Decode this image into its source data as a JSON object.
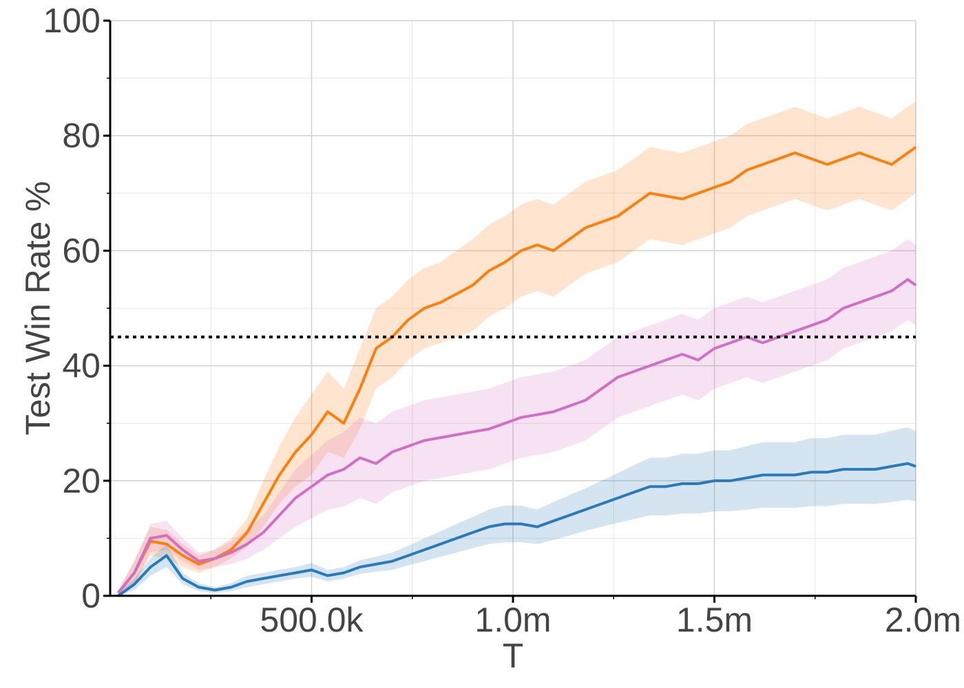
{
  "chart_data": {
    "type": "line",
    "title": "",
    "xlabel": "T",
    "ylabel": "Test Win Rate %",
    "xlim": [
      0,
      2000000
    ],
    "ylim": [
      0,
      100
    ],
    "x_ticks": [
      {
        "value": 500000,
        "label": "500.0k"
      },
      {
        "value": 1000000,
        "label": "1.0m"
      },
      {
        "value": 1500000,
        "label": "1.5m"
      },
      {
        "value": 2000000,
        "label": "2.0m"
      }
    ],
    "y_ticks": [
      {
        "value": 0,
        "label": "0"
      },
      {
        "value": 20,
        "label": "20"
      },
      {
        "value": 40,
        "label": "40"
      },
      {
        "value": 60,
        "label": "60"
      },
      {
        "value": 80,
        "label": "80"
      },
      {
        "value": 100,
        "label": "100"
      }
    ],
    "grid": true,
    "reference_line": {
      "y": 45,
      "style": "dotted",
      "color": "#000000"
    },
    "series": [
      {
        "color": "#ff7f0e",
        "x": [
          20000,
          60000,
          100000,
          140000,
          180000,
          220000,
          260000,
          300000,
          340000,
          380000,
          420000,
          460000,
          500000,
          540000,
          580000,
          620000,
          660000,
          700000,
          740000,
          780000,
          820000,
          860000,
          900000,
          940000,
          980000,
          1020000,
          1060000,
          1100000,
          1140000,
          1180000,
          1220000,
          1260000,
          1300000,
          1340000,
          1380000,
          1420000,
          1460000,
          1500000,
          1540000,
          1580000,
          1620000,
          1660000,
          1700000,
          1740000,
          1780000,
          1820000,
          1860000,
          1900000,
          1940000,
          1980000,
          2000000
        ],
        "y": [
          0.5,
          4,
          9.5,
          9,
          7,
          5.5,
          6.5,
          8,
          11,
          16,
          21,
          25,
          28,
          32,
          30,
          36,
          43,
          45,
          48,
          50,
          51,
          52.5,
          54,
          56.5,
          58,
          60,
          61,
          60,
          62,
          64,
          65,
          66,
          68,
          70,
          69.5,
          69,
          70,
          71,
          72,
          74,
          75,
          76,
          77,
          76,
          75,
          76,
          77,
          76,
          75,
          77,
          78
        ],
        "lower": [
          0,
          2,
          7,
          6.5,
          5,
          4,
          5,
          6.5,
          8.5,
          12,
          16,
          19,
          21,
          25,
          24,
          29,
          36,
          38,
          41,
          43,
          44,
          45,
          46,
          48.5,
          50,
          52,
          53,
          52,
          54,
          56,
          57,
          58,
          60,
          62,
          61.5,
          61,
          62,
          63,
          64,
          66,
          67,
          68,
          69,
          68,
          67,
          68,
          69,
          68,
          67,
          69,
          70
        ],
        "upper": [
          1,
          6,
          12,
          11.5,
          9,
          7,
          8,
          10,
          13.5,
          20,
          26,
          31,
          35,
          39,
          36,
          43,
          50,
          52,
          55,
          57,
          58,
          60,
          62,
          64.5,
          66,
          68,
          69,
          68,
          70,
          72,
          73,
          74,
          76,
          78,
          77.5,
          77,
          78,
          79,
          80,
          82,
          83,
          84,
          85,
          84,
          83,
          84,
          85,
          84,
          83,
          85,
          86
        ]
      },
      {
        "color": "#d16fc4",
        "x": [
          20000,
          60000,
          100000,
          140000,
          180000,
          220000,
          260000,
          300000,
          340000,
          380000,
          420000,
          460000,
          500000,
          540000,
          580000,
          620000,
          660000,
          700000,
          740000,
          780000,
          820000,
          860000,
          900000,
          940000,
          980000,
          1020000,
          1060000,
          1100000,
          1140000,
          1180000,
          1220000,
          1260000,
          1300000,
          1340000,
          1380000,
          1420000,
          1460000,
          1500000,
          1540000,
          1580000,
          1620000,
          1660000,
          1700000,
          1740000,
          1780000,
          1820000,
          1860000,
          1900000,
          1940000,
          1980000,
          2000000
        ],
        "y": [
          0.5,
          4,
          10,
          10.5,
          8,
          6,
          6.5,
          7.5,
          9,
          11,
          14,
          17,
          19,
          21,
          22,
          24,
          23,
          25,
          26,
          27,
          27.5,
          28,
          28.5,
          29,
          30,
          31,
          31.5,
          32,
          33,
          34,
          36,
          38,
          39,
          40,
          41,
          42,
          41,
          43,
          44,
          45,
          44,
          45,
          46,
          47,
          48,
          50,
          51,
          52,
          53,
          55,
          54
        ],
        "lower": [
          0,
          2,
          7.5,
          8,
          6,
          4.5,
          5,
          5.5,
          6.5,
          8,
          10,
          12,
          13.5,
          15,
          15.5,
          17,
          16,
          18,
          19,
          20,
          20.5,
          21,
          21.5,
          22,
          23,
          24,
          24.5,
          25,
          26,
          27,
          29,
          31,
          32,
          33,
          34,
          35,
          34,
          36,
          37,
          38,
          37,
          38,
          39,
          40,
          41,
          43,
          44,
          45,
          46,
          48,
          47
        ],
        "upper": [
          1,
          6,
          12.5,
          13,
          10,
          7.5,
          8,
          9.5,
          11.5,
          14,
          18,
          22,
          24.5,
          27,
          28.5,
          31,
          30,
          32,
          33,
          34,
          34.5,
          35,
          35.5,
          36,
          37,
          38,
          38.5,
          39,
          40,
          41,
          43,
          45,
          46,
          47,
          48,
          49,
          48,
          50,
          51,
          52,
          51,
          52,
          53,
          54,
          55,
          57,
          58,
          59,
          60,
          62,
          61
        ]
      },
      {
        "color": "#2a7ab9",
        "x": [
          20000,
          60000,
          100000,
          140000,
          180000,
          220000,
          260000,
          300000,
          340000,
          380000,
          420000,
          460000,
          500000,
          540000,
          580000,
          620000,
          660000,
          700000,
          740000,
          780000,
          820000,
          860000,
          900000,
          940000,
          980000,
          1020000,
          1060000,
          1100000,
          1140000,
          1180000,
          1220000,
          1260000,
          1300000,
          1340000,
          1380000,
          1420000,
          1460000,
          1500000,
          1540000,
          1580000,
          1620000,
          1660000,
          1700000,
          1740000,
          1780000,
          1820000,
          1860000,
          1900000,
          1940000,
          1980000,
          2000000
        ],
        "y": [
          0,
          2,
          5,
          7,
          3,
          1.5,
          1,
          1.5,
          2.5,
          3,
          3.5,
          4,
          4.5,
          3.5,
          4,
          5,
          5.5,
          6,
          7,
          8,
          9,
          10,
          11,
          12,
          12.5,
          12.5,
          12,
          13,
          14,
          15,
          16,
          17,
          18,
          19,
          19,
          19.5,
          19.5,
          20,
          20,
          20.5,
          21,
          21,
          21,
          21.5,
          21.5,
          22,
          22,
          22,
          22.5,
          23,
          22.5
        ],
        "lower": [
          0,
          1,
          3.5,
          5,
          2,
          0.8,
          0.5,
          0.8,
          1.5,
          2,
          2.5,
          3,
          3.3,
          2.5,
          3,
          3.8,
          4.2,
          4.5,
          5.3,
          6,
          6.8,
          7.5,
          8.3,
          9,
          9.3,
          9.3,
          9,
          9.7,
          10.5,
          11.3,
          12,
          12.7,
          13.3,
          14,
          14,
          14.3,
          14.3,
          14.7,
          14.7,
          15,
          15.3,
          15.3,
          15.3,
          15.6,
          15.6,
          16,
          16,
          16,
          16.3,
          16.7,
          16.4
        ],
        "upper": [
          0.5,
          3,
          6.5,
          9,
          4,
          2.2,
          1.5,
          2.2,
          3.5,
          4,
          4.5,
          5,
          5.7,
          4.5,
          5,
          6.2,
          6.8,
          7.5,
          8.7,
          10,
          11.2,
          12.5,
          13.7,
          15,
          15.7,
          15.7,
          15,
          16.3,
          17.5,
          18.7,
          20,
          21.3,
          22.7,
          24,
          24,
          24.7,
          24.7,
          25.3,
          25.3,
          26,
          26.7,
          26.7,
          26.7,
          27.4,
          27.4,
          28,
          28,
          28,
          28.7,
          29.3,
          28.6
        ]
      }
    ]
  }
}
